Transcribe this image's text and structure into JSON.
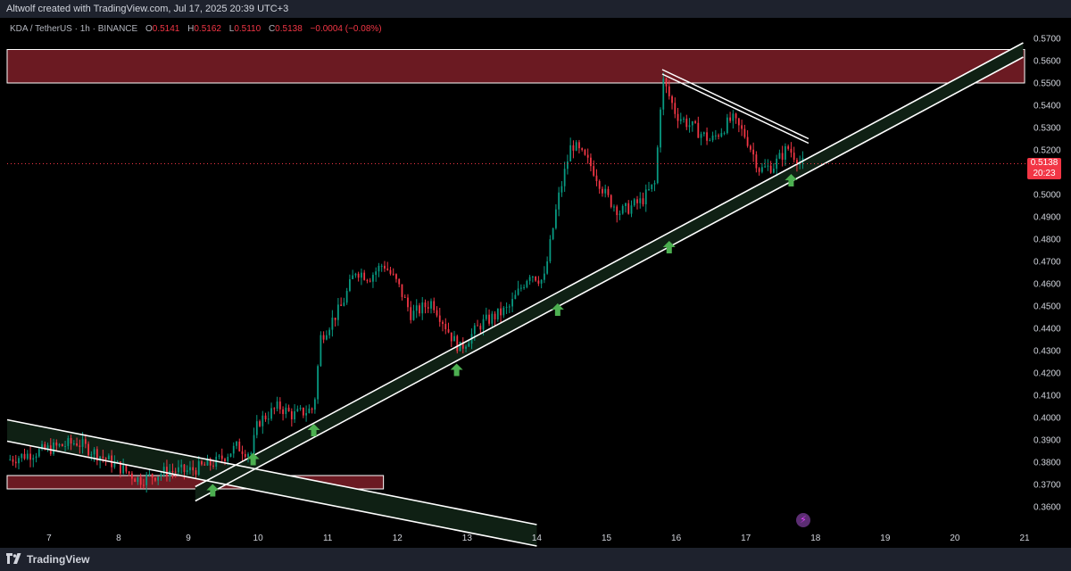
{
  "attribution": "Altwolf created with TradingView.com, Jul 17, 2025 20:39 UTC+3",
  "legend": {
    "symbol": "KDA / TetherUS · 1h · BINANCE",
    "open_label": "O",
    "open": "0.5141",
    "high_label": "H",
    "high": "0.5162",
    "low_label": "L",
    "low": "0.5110",
    "close_label": "C",
    "close": "0.5138",
    "change": "−0.0004 (−0.08%)"
  },
  "last_price": {
    "value": "0.5138",
    "countdown": "20:23"
  },
  "footer": {
    "brand": "TradingView"
  },
  "icons": [
    "tradingview-logo-icon",
    "flash-icon",
    "arrow-up-icon"
  ],
  "colors": {
    "up": "#089981",
    "down": "#f23645",
    "zone": "#6b1a22",
    "channel": "#0f2014",
    "arrow": "#4caf50",
    "line": "#ffffff"
  },
  "chart_data": {
    "type": "candlestick",
    "symbol": "KDA/USDT",
    "timeframe": "1h",
    "ylim": [
      0.352,
      0.572
    ],
    "xlim": [
      6.4,
      21.0
    ],
    "y_ticks": [
      "0.5700",
      "0.5600",
      "0.5500",
      "0.5400",
      "0.5300",
      "0.5200",
      "0.5000",
      "0.4900",
      "0.4800",
      "0.4700",
      "0.4600",
      "0.4500",
      "0.4400",
      "0.4300",
      "0.4200",
      "0.4100",
      "0.4000",
      "0.3900",
      "0.3800",
      "0.3700",
      "0.3600"
    ],
    "x_ticks": [
      "7",
      "8",
      "9",
      "10",
      "11",
      "12",
      "13",
      "14",
      "15",
      "16",
      "17",
      "18",
      "19",
      "20",
      "21"
    ],
    "price_path": [
      [
        6.4,
        0.381
      ],
      [
        7.0,
        0.386
      ],
      [
        7.4,
        0.389
      ],
      [
        8.0,
        0.378
      ],
      [
        8.3,
        0.372
      ],
      [
        8.7,
        0.376
      ],
      [
        9.0,
        0.376
      ],
      [
        9.4,
        0.38
      ],
      [
        9.7,
        0.387
      ],
      [
        9.9,
        0.384
      ],
      [
        10.0,
        0.398
      ],
      [
        10.3,
        0.405
      ],
      [
        10.5,
        0.401
      ],
      [
        10.8,
        0.404
      ],
      [
        10.9,
        0.436
      ],
      [
        11.2,
        0.45
      ],
      [
        11.4,
        0.466
      ],
      [
        11.6,
        0.463
      ],
      [
        11.8,
        0.469
      ],
      [
        12.0,
        0.46
      ],
      [
        12.2,
        0.446
      ],
      [
        12.5,
        0.452
      ],
      [
        12.8,
        0.435
      ],
      [
        12.9,
        0.431
      ],
      [
        13.2,
        0.442
      ],
      [
        13.6,
        0.449
      ],
      [
        13.9,
        0.465
      ],
      [
        14.1,
        0.461
      ],
      [
        14.3,
        0.497
      ],
      [
        14.5,
        0.523
      ],
      [
        14.8,
        0.512
      ],
      [
        15.0,
        0.499
      ],
      [
        15.2,
        0.492
      ],
      [
        15.5,
        0.497
      ],
      [
        15.7,
        0.505
      ],
      [
        15.8,
        0.552
      ],
      [
        16.0,
        0.536
      ],
      [
        16.2,
        0.531
      ],
      [
        16.5,
        0.524
      ],
      [
        16.8,
        0.534
      ],
      [
        17.0,
        0.526
      ],
      [
        17.2,
        0.511
      ],
      [
        17.4,
        0.513
      ],
      [
        17.6,
        0.521
      ],
      [
        17.8,
        0.5138
      ]
    ],
    "overlays": {
      "supply_zone": [
        0.55,
        0.565
      ],
      "demand_zone": {
        "y": [
          0.368,
          0.374
        ],
        "x": [
          6.4,
          11.8
        ]
      },
      "rising_channel": {
        "start": [
          9.1,
          0.369
        ],
        "end": [
          20.98,
          0.568
        ]
      },
      "falling_channel": {
        "start": [
          6.4,
          0.399
        ],
        "end": [
          14.0,
          0.352
        ]
      },
      "resistance_lines": [
        {
          "start": [
            15.8,
            0.556
          ],
          "end": [
            17.9,
            0.525
          ]
        }
      ],
      "arrows_up": [
        [
          9.35,
          0.367
        ],
        [
          9.93,
          0.381
        ],
        [
          10.8,
          0.394
        ],
        [
          12.85,
          0.421
        ],
        [
          14.3,
          0.448
        ],
        [
          15.9,
          0.476
        ],
        [
          17.65,
          0.506
        ]
      ]
    }
  }
}
